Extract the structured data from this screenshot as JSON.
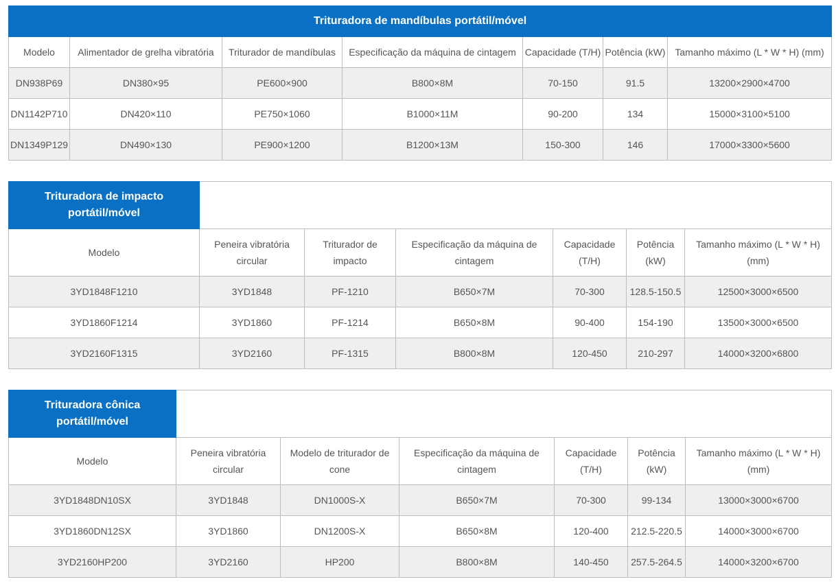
{
  "tables": [
    {
      "title": "Trituradora de mandíbulas portátil/móvel",
      "headers": [
        "Modelo",
        "Alimentador de grelha vibratória",
        "Triturador de mandíbulas",
        "Especificação da máquina de cintagem",
        "Capacidade (T/H)",
        "Potência (kW)",
        "Tamanho máximo (L * W * H) (mm)"
      ],
      "rows": [
        [
          "DN938P69",
          "DN380×95",
          "PE600×900",
          "B800×8M",
          "70-150",
          "91.5",
          "13200×2900×4700"
        ],
        [
          "DN1142P710",
          "DN420×110",
          "PE750×1060",
          "B1000×11M",
          "90-200",
          "134",
          "15000×3100×5100"
        ],
        [
          "DN1349P129",
          "DN490×130",
          "PE900×1200",
          "B1200×13M",
          "150-300",
          "146",
          "17000×3300×5600"
        ]
      ]
    },
    {
      "title": "Trituradora de impacto portátil/móvel",
      "headers": [
        "Modelo",
        "Peneira vibratória circular",
        "Triturador de impacto",
        "Especificação da máquina de cintagem",
        "Capacidade (T/H)",
        "Potência (kW)",
        "Tamanho máximo (L * W * H) (mm)"
      ],
      "rows": [
        [
          "3YD1848F1210",
          "3YD1848",
          "PF-1210",
          "B650×7M",
          "70-300",
          "128.5-150.5",
          "12500×3000×6500"
        ],
        [
          "3YD1860F1214",
          "3YD1860",
          "PF-1214",
          "B650×8M",
          "90-400",
          "154-190",
          "13500×3000×6500"
        ],
        [
          "3YD2160F1315",
          "3YD2160",
          "PF-1315",
          "B800×8M",
          "120-450",
          "210-297",
          "14000×3200×6800"
        ]
      ]
    },
    {
      "title": "Trituradora cônica portátil/móvel",
      "headers": [
        "Modelo",
        "Peneira vibratória circular",
        "Modelo de triturador de cone",
        "Especificação da máquina de cintagem",
        "Capacidade (T/H)",
        "Potência (kW)",
        "Tamanho máximo (L * W * H) (mm)"
      ],
      "rows": [
        [
          "3YD1848DN10SX",
          "3YD1848",
          "DN1000S-X",
          "B650×7M",
          "70-300",
          "99-134",
          "13000×3000×6700"
        ],
        [
          "3YD1860DN12SX",
          "3YD1860",
          "DN1200S-X",
          "B650×8M",
          "120-400",
          "212.5-220.5",
          "14000×3000×6700"
        ],
        [
          "3YD2160HP200",
          "3YD2160",
          "HP200",
          "B800×8M",
          "140-450",
          "257.5-264.5",
          "14000×3200×6700"
        ]
      ]
    }
  ],
  "colors": {
    "accent": "#0a70c4",
    "row_alt": "#efefef",
    "border": "#bdbdbd",
    "text": "#555555"
  }
}
